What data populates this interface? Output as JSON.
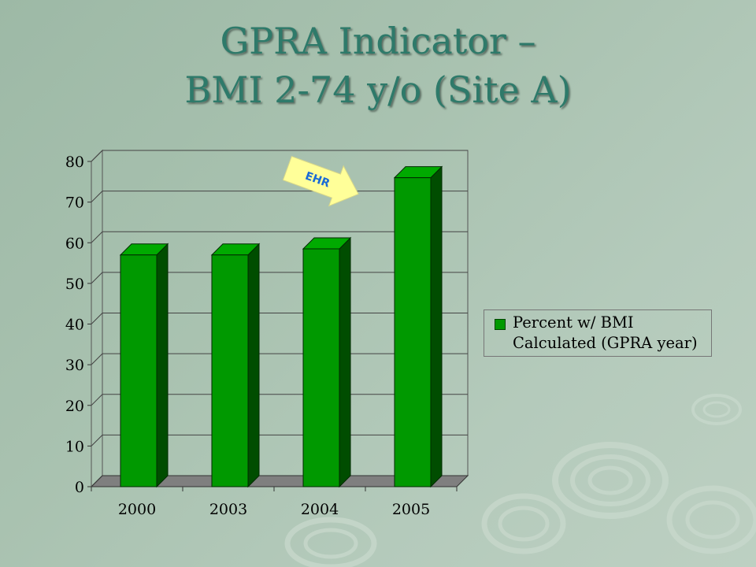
{
  "slide": {
    "title_line1": "GPRA Indicator –",
    "title_line2": "BMI 2-74 y/o (Site A)"
  },
  "annotation": {
    "label": "EHR",
    "color": "#ffff99"
  },
  "chart_data": {
    "type": "bar",
    "categories": [
      "2000",
      "2003",
      "2004",
      "2005"
    ],
    "series": [
      {
        "name": "Percent w/ BMI Calculated (GPRA year)",
        "values": [
          57,
          57,
          58.5,
          76
        ]
      }
    ],
    "ylim": [
      0,
      80
    ],
    "yticks": [
      0,
      10,
      20,
      30,
      40,
      50,
      60,
      70,
      80
    ],
    "grid": true,
    "style": "3d",
    "legend_position": "right",
    "colors": {
      "front": "#009900",
      "side": "#004d00",
      "top": "#00aa00",
      "floor": "#7f7f7f"
    }
  }
}
